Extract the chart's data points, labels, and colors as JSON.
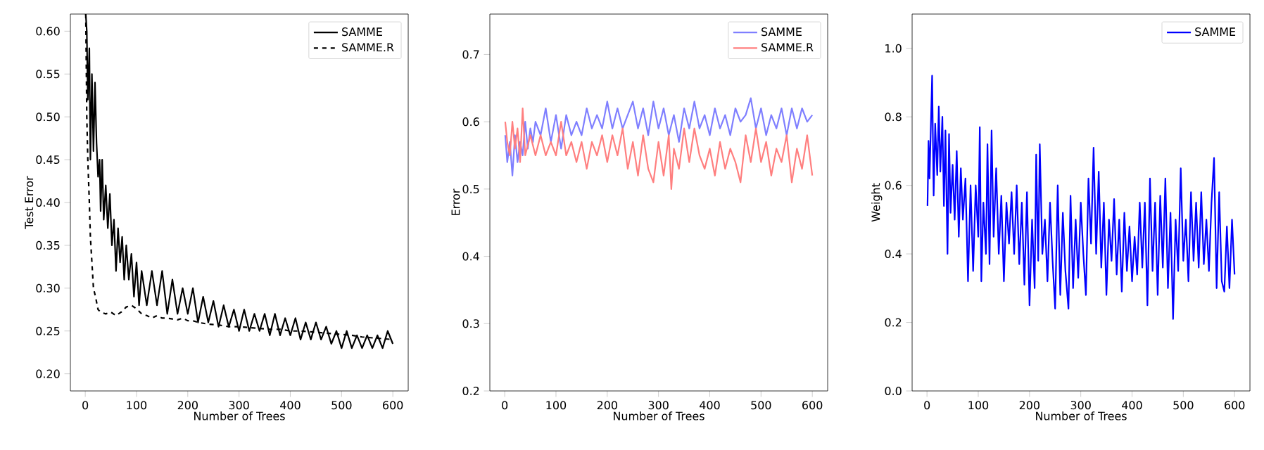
{
  "chart_data": [
    {
      "type": "line",
      "xlabel": "Number of Trees",
      "ylabel": "Test Error",
      "xlim": [
        -29,
        630
      ],
      "ylim": [
        0.18,
        0.62
      ],
      "xticks": [
        0,
        100,
        200,
        300,
        400,
        500,
        600
      ],
      "yticks": [
        {
          "value": 0.2,
          "label": "0.20"
        },
        {
          "value": 0.25,
          "label": "0.25"
        },
        {
          "value": 0.3,
          "label": "0.30"
        },
        {
          "value": 0.35,
          "label": "0.35"
        },
        {
          "value": 0.4,
          "label": "0.40"
        },
        {
          "value": 0.45,
          "label": "0.45"
        },
        {
          "value": 0.5,
          "label": "0.50"
        },
        {
          "value": 0.55,
          "label": "0.55"
        },
        {
          "value": 0.6,
          "label": "0.60"
        }
      ],
      "legend": "top right",
      "line_style": "solid",
      "series": [
        {
          "name": "SAMME",
          "color": "#000000",
          "x": [
            1,
            3,
            5,
            8,
            10,
            13,
            16,
            19,
            22,
            25,
            28,
            30,
            33,
            36,
            40,
            44,
            48,
            52,
            56,
            60,
            64,
            68,
            72,
            76,
            80,
            85,
            90,
            95,
            100,
            105,
            110,
            120,
            130,
            140,
            150,
            160,
            170,
            180,
            190,
            200,
            210,
            220,
            230,
            240,
            250,
            260,
            270,
            280,
            290,
            300,
            310,
            320,
            330,
            340,
            350,
            360,
            370,
            380,
            390,
            400,
            410,
            420,
            430,
            440,
            450,
            460,
            470,
            480,
            490,
            500,
            510,
            520,
            530,
            540,
            550,
            560,
            570,
            580,
            590,
            600
          ],
          "values": [
            0.62,
            0.6,
            0.52,
            0.58,
            0.45,
            0.55,
            0.46,
            0.54,
            0.47,
            0.43,
            0.45,
            0.39,
            0.45,
            0.38,
            0.42,
            0.37,
            0.41,
            0.35,
            0.38,
            0.32,
            0.37,
            0.33,
            0.36,
            0.31,
            0.35,
            0.31,
            0.34,
            0.29,
            0.33,
            0.28,
            0.32,
            0.28,
            0.32,
            0.28,
            0.32,
            0.27,
            0.31,
            0.27,
            0.3,
            0.27,
            0.3,
            0.26,
            0.29,
            0.26,
            0.285,
            0.255,
            0.28,
            0.255,
            0.275,
            0.25,
            0.275,
            0.25,
            0.27,
            0.25,
            0.27,
            0.245,
            0.27,
            0.245,
            0.265,
            0.245,
            0.265,
            0.24,
            0.26,
            0.24,
            0.26,
            0.24,
            0.255,
            0.235,
            0.25,
            0.23,
            0.25,
            0.23,
            0.245,
            0.23,
            0.245,
            0.23,
            0.245,
            0.23,
            0.25,
            0.235
          ]
        },
        {
          "name": "SAMME.R",
          "color": "#000000",
          "line_style": "dashed",
          "x": [
            1,
            3,
            5,
            8,
            10,
            13,
            16,
            20,
            25,
            30,
            40,
            50,
            60,
            70,
            80,
            90,
            100,
            110,
            120,
            130,
            140,
            150,
            160,
            170,
            180,
            190,
            200,
            210,
            220,
            240,
            260,
            280,
            300,
            320,
            340,
            360,
            380,
            400,
            420,
            440,
            460,
            480,
            500,
            520,
            540,
            560,
            580,
            600
          ],
          "values": [
            0.62,
            0.5,
            0.45,
            0.4,
            0.36,
            0.33,
            0.3,
            0.29,
            0.275,
            0.272,
            0.27,
            0.272,
            0.268,
            0.272,
            0.278,
            0.28,
            0.276,
            0.27,
            0.268,
            0.265,
            0.268,
            0.265,
            0.265,
            0.264,
            0.263,
            0.265,
            0.262,
            0.262,
            0.26,
            0.258,
            0.257,
            0.255,
            0.255,
            0.254,
            0.253,
            0.252,
            0.252,
            0.25,
            0.25,
            0.249,
            0.248,
            0.247,
            0.246,
            0.245,
            0.243,
            0.242,
            0.241,
            0.24
          ]
        }
      ]
    },
    {
      "type": "line",
      "xlabel": "Number of Trees",
      "ylabel": "Error",
      "xlim": [
        -29,
        630
      ],
      "ylim": [
        0.2,
        0.76
      ],
      "xticks": [
        0,
        100,
        200,
        300,
        400,
        500,
        600
      ],
      "yticks": [
        0.2,
        0.3,
        0.4,
        0.5,
        0.6,
        0.7
      ],
      "legend": "top right",
      "line_style": "solid",
      "series": [
        {
          "name": "SAMME",
          "color": "#7f7fff",
          "x": [
            1,
            5,
            10,
            15,
            20,
            25,
            30,
            35,
            40,
            45,
            50,
            55,
            60,
            70,
            80,
            90,
            100,
            110,
            120,
            130,
            140,
            150,
            160,
            170,
            180,
            190,
            200,
            210,
            220,
            230,
            240,
            250,
            260,
            270,
            280,
            290,
            300,
            310,
            320,
            330,
            340,
            350,
            360,
            370,
            380,
            390,
            400,
            410,
            420,
            430,
            440,
            450,
            460,
            470,
            480,
            490,
            500,
            510,
            520,
            530,
            540,
            550,
            560,
            570,
            580,
            590,
            600
          ],
          "values": [
            0.58,
            0.54,
            0.57,
            0.52,
            0.58,
            0.54,
            0.57,
            0.55,
            0.6,
            0.56,
            0.59,
            0.57,
            0.6,
            0.58,
            0.62,
            0.57,
            0.61,
            0.56,
            0.61,
            0.58,
            0.6,
            0.58,
            0.62,
            0.59,
            0.61,
            0.59,
            0.63,
            0.59,
            0.62,
            0.59,
            0.61,
            0.63,
            0.59,
            0.62,
            0.58,
            0.63,
            0.59,
            0.62,
            0.58,
            0.61,
            0.57,
            0.62,
            0.59,
            0.63,
            0.59,
            0.61,
            0.58,
            0.62,
            0.59,
            0.61,
            0.58,
            0.62,
            0.6,
            0.61,
            0.635,
            0.59,
            0.62,
            0.58,
            0.61,
            0.59,
            0.62,
            0.58,
            0.62,
            0.59,
            0.62,
            0.6,
            0.61
          ]
        },
        {
          "name": "SAMME.R",
          "color": "#ff7f7f",
          "x": [
            1,
            5,
            10,
            15,
            20,
            25,
            30,
            35,
            40,
            50,
            60,
            70,
            80,
            90,
            100,
            110,
            120,
            130,
            140,
            150,
            160,
            170,
            180,
            190,
            200,
            210,
            220,
            230,
            240,
            250,
            260,
            270,
            280,
            290,
            300,
            310,
            320,
            325,
            330,
            340,
            350,
            360,
            370,
            380,
            390,
            400,
            410,
            420,
            430,
            440,
            450,
            460,
            470,
            480,
            490,
            500,
            510,
            520,
            530,
            540,
            550,
            560,
            570,
            580,
            590,
            600
          ],
          "values": [
            0.6,
            0.57,
            0.55,
            0.6,
            0.56,
            0.59,
            0.54,
            0.62,
            0.55,
            0.58,
            0.55,
            0.58,
            0.55,
            0.57,
            0.55,
            0.6,
            0.55,
            0.57,
            0.54,
            0.57,
            0.53,
            0.57,
            0.55,
            0.58,
            0.54,
            0.58,
            0.55,
            0.59,
            0.53,
            0.57,
            0.52,
            0.58,
            0.53,
            0.51,
            0.57,
            0.52,
            0.58,
            0.5,
            0.56,
            0.53,
            0.59,
            0.54,
            0.59,
            0.55,
            0.53,
            0.56,
            0.52,
            0.57,
            0.53,
            0.56,
            0.54,
            0.51,
            0.58,
            0.54,
            0.59,
            0.54,
            0.57,
            0.52,
            0.56,
            0.54,
            0.58,
            0.51,
            0.56,
            0.53,
            0.58,
            0.52
          ]
        }
      ]
    },
    {
      "type": "line",
      "xlabel": "Number of Trees",
      "ylabel": "Weight",
      "xlim": [
        -29,
        630
      ],
      "ylim": [
        0,
        1.1
      ],
      "xticks": [
        0,
        100,
        200,
        300,
        400,
        500,
        600
      ],
      "yticks": [
        {
          "value": 0,
          "label": "0.0"
        },
        0.2,
        0.4,
        0.6,
        0.8,
        {
          "value": 1,
          "label": "1.0"
        }
      ],
      "legend": "top right",
      "line_style": "solid",
      "series": [
        {
          "name": "SAMME",
          "color": "#0000ff",
          "x": [
            1,
            3,
            5,
            8,
            10,
            13,
            16,
            20,
            23,
            26,
            30,
            33,
            36,
            40,
            43,
            46,
            50,
            54,
            58,
            62,
            66,
            70,
            75,
            80,
            85,
            90,
            95,
            100,
            103,
            106,
            110,
            115,
            118,
            122,
            126,
            130,
            135,
            140,
            145,
            150,
            155,
            160,
            165,
            170,
            175,
            180,
            185,
            190,
            195,
            200,
            205,
            210,
            213,
            217,
            220,
            225,
            230,
            235,
            240,
            245,
            250,
            255,
            260,
            265,
            270,
            276,
            280,
            285,
            290,
            295,
            300,
            305,
            310,
            315,
            320,
            325,
            330,
            335,
            340,
            345,
            350,
            355,
            360,
            365,
            370,
            375,
            380,
            385,
            390,
            395,
            400,
            405,
            410,
            415,
            420,
            425,
            430,
            435,
            440,
            445,
            450,
            455,
            460,
            465,
            470,
            475,
            480,
            485,
            490,
            495,
            500,
            505,
            510,
            515,
            520,
            525,
            530,
            535,
            540,
            545,
            550,
            555,
            560,
            565,
            570,
            575,
            580,
            585,
            590,
            595,
            600
          ],
          "values": [
            0.54,
            0.73,
            0.62,
            0.8,
            0.92,
            0.57,
            0.78,
            0.63,
            0.83,
            0.64,
            0.8,
            0.54,
            0.76,
            0.4,
            0.75,
            0.52,
            0.66,
            0.5,
            0.7,
            0.45,
            0.65,
            0.5,
            0.62,
            0.32,
            0.6,
            0.35,
            0.6,
            0.45,
            0.77,
            0.32,
            0.55,
            0.4,
            0.72,
            0.37,
            0.76,
            0.45,
            0.65,
            0.4,
            0.57,
            0.32,
            0.55,
            0.43,
            0.58,
            0.4,
            0.6,
            0.37,
            0.55,
            0.31,
            0.58,
            0.25,
            0.5,
            0.3,
            0.69,
            0.38,
            0.72,
            0.4,
            0.5,
            0.32,
            0.55,
            0.38,
            0.24,
            0.6,
            0.28,
            0.52,
            0.35,
            0.24,
            0.57,
            0.3,
            0.5,
            0.33,
            0.55,
            0.4,
            0.28,
            0.62,
            0.43,
            0.71,
            0.4,
            0.64,
            0.36,
            0.55,
            0.28,
            0.5,
            0.38,
            0.56,
            0.34,
            0.5,
            0.29,
            0.52,
            0.35,
            0.48,
            0.32,
            0.45,
            0.34,
            0.55,
            0.36,
            0.55,
            0.25,
            0.62,
            0.35,
            0.55,
            0.28,
            0.57,
            0.36,
            0.62,
            0.3,
            0.52,
            0.21,
            0.5,
            0.35,
            0.65,
            0.38,
            0.5,
            0.32,
            0.58,
            0.38,
            0.55,
            0.36,
            0.58,
            0.37,
            0.5,
            0.35,
            0.55,
            0.68,
            0.3,
            0.58,
            0.32,
            0.29,
            0.48,
            0.3,
            0.5,
            0.34
          ]
        }
      ]
    }
  ]
}
